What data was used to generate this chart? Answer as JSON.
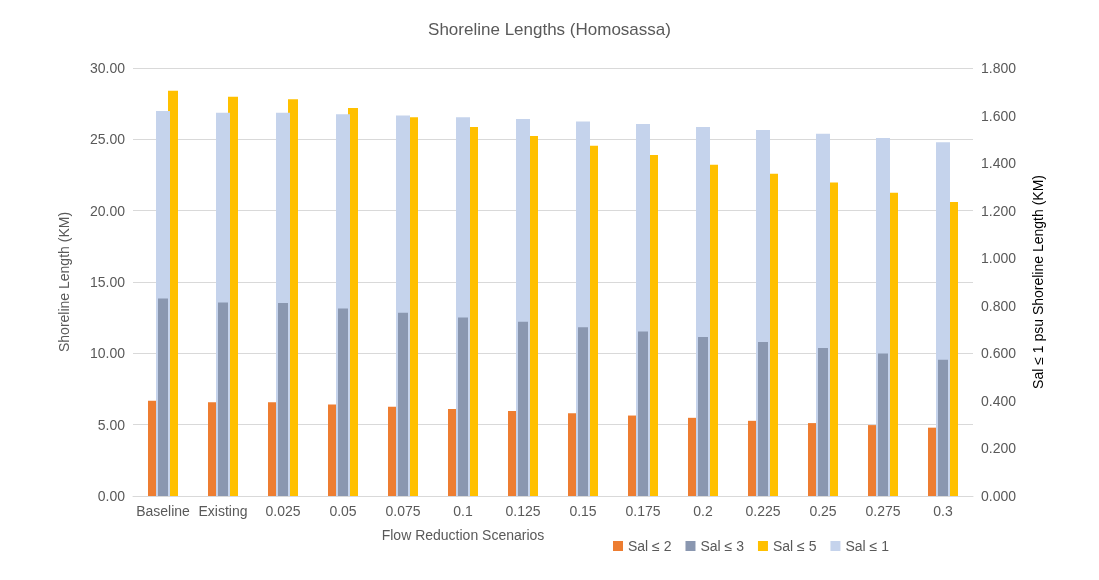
{
  "chart_data": {
    "type": "bar",
    "title": "Shoreline Lengths (Homosassa)",
    "xlabel": "Flow Reduction Scenarios",
    "ylabel": "Shoreline Length (KM)",
    "y2label": "Sal ≤ 1 psu Shoreline Length (KM)",
    "categories": [
      "Baseline",
      "Existing",
      "0.025",
      "0.05",
      "0.075",
      "0.1",
      "0.125",
      "0.15",
      "0.175",
      "0.2",
      "0.225",
      "0.25",
      "0.275",
      "0.3"
    ],
    "series": [
      {
        "name": "Sal ≤ 2",
        "color": "#ed7d31",
        "values": [
          6.67,
          6.58,
          6.58,
          6.42,
          6.26,
          6.1,
          5.96,
          5.8,
          5.64,
          5.48,
          5.27,
          5.11,
          4.97,
          4.79
        ]
      },
      {
        "name": "Sal ≤ 3",
        "color": "#8a97b0",
        "values": [
          13.85,
          13.57,
          13.53,
          13.14,
          12.84,
          12.52,
          12.22,
          11.83,
          11.53,
          11.14,
          10.79,
          10.38,
          9.99,
          9.55
        ]
      },
      {
        "name": "Sal ≤ 5",
        "color": "#ffc000",
        "values": [
          28.4,
          27.98,
          27.81,
          27.19,
          26.55,
          25.86,
          25.24,
          24.55,
          23.91,
          23.22,
          22.59,
          21.97,
          21.26,
          20.61
        ]
      },
      {
        "name": "Sal ≤ 1",
        "color": "#c5d3ec",
        "axis": "y2",
        "values": [
          1.619,
          1.612,
          1.612,
          1.605,
          1.6,
          1.593,
          1.585,
          1.575,
          1.565,
          1.552,
          1.539,
          1.523,
          1.506,
          1.488
        ]
      }
    ],
    "ylim": [
      0,
      30
    ],
    "yticks": [
      {
        "value": 0,
        "label": "0.00"
      },
      {
        "value": 5,
        "label": "5.00"
      },
      {
        "value": 10,
        "label": "10.00"
      },
      {
        "value": 15,
        "label": "15.00"
      },
      {
        "value": 20,
        "label": "20.00"
      },
      {
        "value": 25,
        "label": "25.00"
      },
      {
        "value": 30,
        "label": "30.00"
      }
    ],
    "y2lim": [
      0,
      1.8
    ],
    "y2ticks": [
      {
        "value": 0,
        "label": "0.000"
      },
      {
        "value": 0.2,
        "label": "0.200"
      },
      {
        "value": 0.4,
        "label": "0.400"
      },
      {
        "value": 0.6,
        "label": "0.600"
      },
      {
        "value": 0.8,
        "label": "0.800"
      },
      {
        "value": 1,
        "label": "1.000"
      },
      {
        "value": 1.2,
        "label": "1.200"
      },
      {
        "value": 1.4,
        "label": "1.400"
      },
      {
        "value": 1.6,
        "label": "1.600"
      },
      {
        "value": 1.8,
        "label": "1.800"
      }
    ],
    "grid": "y",
    "legend": "bottom"
  }
}
